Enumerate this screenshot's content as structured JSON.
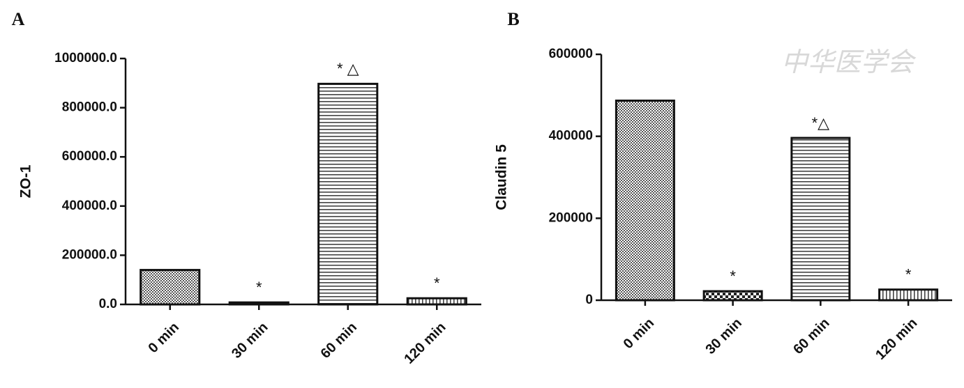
{
  "chart_data": [
    {
      "type": "bar",
      "panel_label": "A",
      "ylabel": "ZO-1",
      "categories": [
        "0 min",
        "30 min",
        "60 min",
        "120 min"
      ],
      "values": [
        140000,
        8000,
        897000,
        25000
      ],
      "annotations": [
        null,
        "*",
        "* △",
        "*"
      ],
      "ylim": [
        0,
        1000000
      ],
      "yticks": [
        {
          "value": 0,
          "label": "0.0"
        },
        {
          "value": 200000,
          "label": "200000.0"
        },
        {
          "value": 400000,
          "label": "400000.0"
        },
        {
          "value": 600000,
          "label": "600000.0"
        },
        {
          "value": 800000,
          "label": "800000.0"
        },
        {
          "value": 1000000,
          "label": "1000000.0"
        }
      ]
    },
    {
      "type": "bar",
      "panel_label": "B",
      "ylabel": "Claudin 5",
      "watermark": "中华医学会",
      "categories": [
        "0 min",
        "30 min",
        "60 min",
        "120 min"
      ],
      "values": [
        487000,
        22000,
        396000,
        26000
      ],
      "annotations": [
        null,
        "*",
        "*△",
        "*"
      ],
      "ylim": [
        0,
        600000
      ],
      "yticks": [
        0,
        200000,
        400000,
        600000
      ]
    }
  ]
}
